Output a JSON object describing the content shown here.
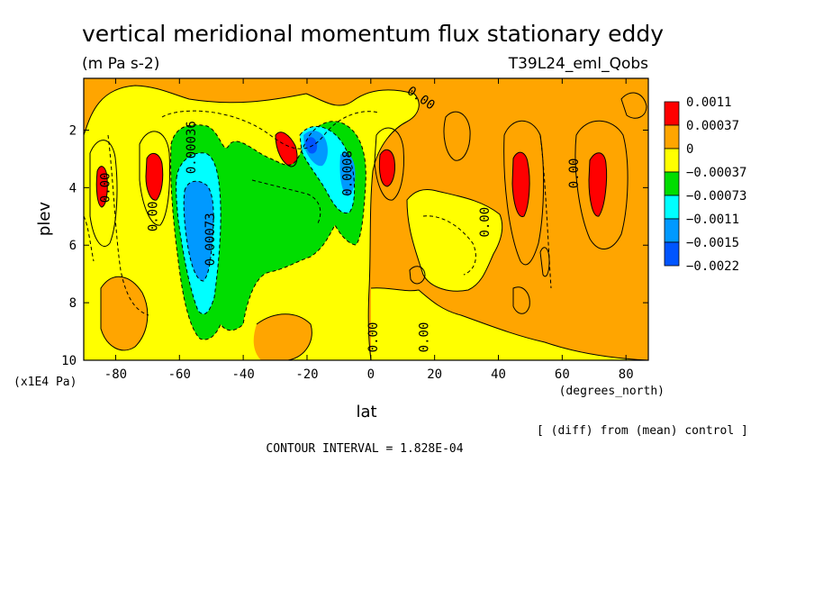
{
  "chart_data": {
    "type": "heatmap",
    "title": "vertical meridional momentum flux stationary eddy",
    "units": "(m Pa s-2)",
    "experiment": "T39L24_eml_Qobs",
    "xlabel": "lat",
    "xunits": "(degrees_north)",
    "ylabel": "plev",
    "yunits": "(x1E4 Pa)",
    "xlim": [
      -90,
      87
    ],
    "ylim": [
      10,
      0.2
    ],
    "x_ticks": [
      -80,
      -60,
      -40,
      -20,
      0,
      20,
      40,
      60,
      80
    ],
    "y_ticks": [
      2,
      4,
      6,
      8,
      10
    ],
    "contour_interval": "CONTOUR INTERVAL = 1.828E-04",
    "comparison_note": "[ (diff) from (mean) control ]",
    "legend": [
      {
        "label": "0.0011",
        "color": "#ff0000"
      },
      {
        "label": "0.00037",
        "color": "#ffa500"
      },
      {
        "label": "0",
        "color": "#ffff00"
      },
      {
        "label": "−0.00037",
        "color": "#00dd00"
      },
      {
        "label": "−0.00073",
        "color": "#00ffff"
      },
      {
        "label": "−0.0011",
        "color": "#0099ff"
      },
      {
        "label": "−0.0015",
        "color": "#0055ff"
      },
      {
        "label": "−0.0022",
        "color": "#0055ff"
      }
    ],
    "contour_labels": [
      {
        "text": "0.00",
        "lat": 15,
        "plev": 1.0
      },
      {
        "text": "0.00",
        "lat": -82,
        "plev": 4.0
      },
      {
        "text": "0.00",
        "lat": -67,
        "plev": 5.0
      },
      {
        "text": "0.00036",
        "lat": -55,
        "plev": 2.6
      },
      {
        "text": "0.00073",
        "lat": -49,
        "plev": 5.8
      },
      {
        "text": "0.00",
        "lat": 37,
        "plev": 5.2
      },
      {
        "text": "0.00",
        "lat": 65,
        "plev": 3.5
      },
      {
        "text": "0.00",
        "lat": 2,
        "plev": 9.2
      },
      {
        "text": "0.00",
        "lat": 18,
        "plev": 9.2
      },
      {
        "text": "0.0008",
        "lat": -6,
        "plev": 3.5
      }
    ]
  }
}
